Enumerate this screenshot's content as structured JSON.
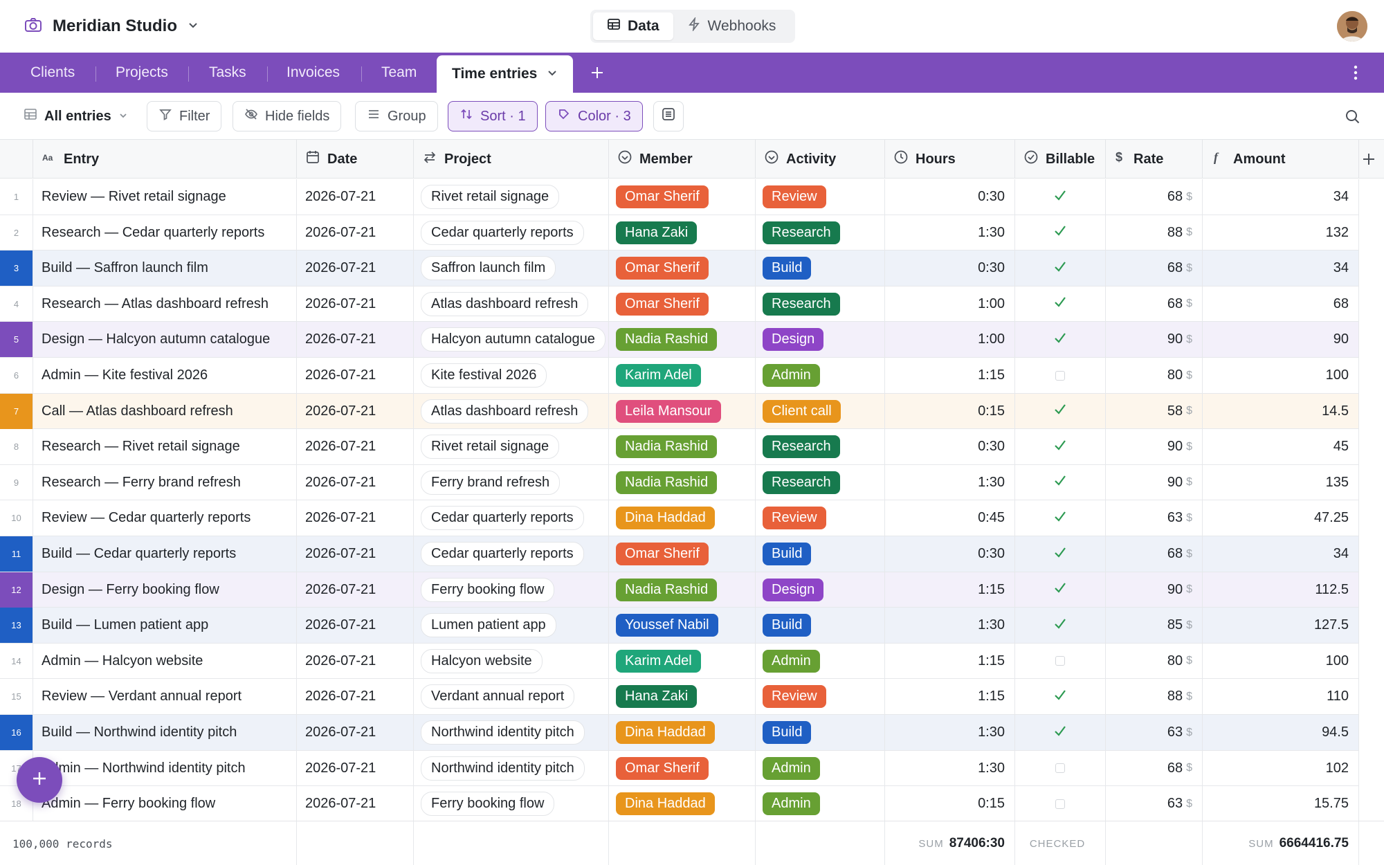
{
  "app": {
    "workspace_name": "Meridian Studio",
    "modes": [
      {
        "label": "Data",
        "icon": "table-icon",
        "active": true
      },
      {
        "label": "Webhooks",
        "icon": "lightning-icon",
        "active": false
      }
    ]
  },
  "tabs": {
    "items": [
      "Clients",
      "Projects",
      "Tasks",
      "Invoices",
      "Team"
    ],
    "active": "Time entries"
  },
  "toolbar": {
    "view": "All entries",
    "filter": "Filter",
    "hide_fields": "Hide fields",
    "group": "Group",
    "sort": "Sort · 1",
    "color": "Color · 3"
  },
  "columns": {
    "entry": "Entry",
    "date": "Date",
    "project": "Project",
    "member": "Member",
    "activity": "Activity",
    "hours": "Hours",
    "billable": "Billable",
    "rate": "Rate",
    "amount": "Amount"
  },
  "colors": {
    "accent": "#7c4dbb",
    "members": {
      "Omar Sherif": "#e8613a",
      "Hana Zaki": "#177a4e",
      "Nadia Rashid": "#67a033",
      "Karim Adel": "#1fa67a",
      "Leila Mansour": "#e04f7d",
      "Dina Haddad": "#e8951c",
      "Youssef Nabil": "#1f5fc4"
    },
    "activities": {
      "Review": "#e8613a",
      "Research": "#177a4e",
      "Build": "#1f5fc4",
      "Design": "#8e45c7",
      "Admin": "#67a033",
      "Client call": "#e8951c"
    },
    "row_tints": {
      "Build": {
        "bg": "#eef2f9",
        "num": "#1f5fc4"
      },
      "Design": {
        "bg": "#f3f0fa",
        "num": "#7c4dbb"
      },
      "Client call": {
        "bg": "#fdf6ec",
        "num": "#e8951c"
      }
    }
  },
  "rows": [
    {
      "n": "1",
      "entry": "Review — Rivet retail signage",
      "date": "2026-07-21",
      "project": "Rivet retail signage",
      "member": "Omar Sherif",
      "activity": "Review",
      "hours": "0:30",
      "billable": true,
      "rate": "68",
      "amount": "34"
    },
    {
      "n": "2",
      "entry": "Research — Cedar quarterly reports",
      "date": "2026-07-21",
      "project": "Cedar quarterly reports",
      "member": "Hana Zaki",
      "activity": "Research",
      "hours": "1:30",
      "billable": true,
      "rate": "88",
      "amount": "132"
    },
    {
      "n": "3",
      "entry": "Build — Saffron launch film",
      "date": "2026-07-21",
      "project": "Saffron launch film",
      "member": "Omar Sherif",
      "activity": "Build",
      "hours": "0:30",
      "billable": true,
      "rate": "68",
      "amount": "34"
    },
    {
      "n": "4",
      "entry": "Research — Atlas dashboard refresh",
      "date": "2026-07-21",
      "project": "Atlas dashboard refresh",
      "member": "Omar Sherif",
      "activity": "Research",
      "hours": "1:00",
      "billable": true,
      "rate": "68",
      "amount": "68"
    },
    {
      "n": "5",
      "entry": "Design — Halcyon autumn catalogue",
      "date": "2026-07-21",
      "project": "Halcyon autumn catalogue",
      "member": "Nadia Rashid",
      "activity": "Design",
      "hours": "1:00",
      "billable": true,
      "rate": "90",
      "amount": "90"
    },
    {
      "n": "6",
      "entry": "Admin — Kite festival 2026",
      "date": "2026-07-21",
      "project": "Kite festival 2026",
      "member": "Karim Adel",
      "activity": "Admin",
      "hours": "1:15",
      "billable": false,
      "rate": "80",
      "amount": "100"
    },
    {
      "n": "7",
      "entry": "Call — Atlas dashboard refresh",
      "date": "2026-07-21",
      "project": "Atlas dashboard refresh",
      "member": "Leila Mansour",
      "activity": "Client call",
      "hours": "0:15",
      "billable": true,
      "rate": "58",
      "amount": "14.5"
    },
    {
      "n": "8",
      "entry": "Research — Rivet retail signage",
      "date": "2026-07-21",
      "project": "Rivet retail signage",
      "member": "Nadia Rashid",
      "activity": "Research",
      "hours": "0:30",
      "billable": true,
      "rate": "90",
      "amount": "45"
    },
    {
      "n": "9",
      "entry": "Research — Ferry brand refresh",
      "date": "2026-07-21",
      "project": "Ferry brand refresh",
      "member": "Nadia Rashid",
      "activity": "Research",
      "hours": "1:30",
      "billable": true,
      "rate": "90",
      "amount": "135"
    },
    {
      "n": "10",
      "entry": "Review — Cedar quarterly reports",
      "date": "2026-07-21",
      "project": "Cedar quarterly reports",
      "member": "Dina Haddad",
      "activity": "Review",
      "hours": "0:45",
      "billable": true,
      "rate": "63",
      "amount": "47.25"
    },
    {
      "n": "11",
      "entry": "Build — Cedar quarterly reports",
      "date": "2026-07-21",
      "project": "Cedar quarterly reports",
      "member": "Omar Sherif",
      "activity": "Build",
      "hours": "0:30",
      "billable": true,
      "rate": "68",
      "amount": "34"
    },
    {
      "n": "12",
      "entry": "Design — Ferry booking flow",
      "date": "2026-07-21",
      "project": "Ferry booking flow",
      "member": "Nadia Rashid",
      "activity": "Design",
      "hours": "1:15",
      "billable": true,
      "rate": "90",
      "amount": "112.5"
    },
    {
      "n": "13",
      "entry": "Build — Lumen patient app",
      "date": "2026-07-21",
      "project": "Lumen patient app",
      "member": "Youssef Nabil",
      "activity": "Build",
      "hours": "1:30",
      "billable": true,
      "rate": "85",
      "amount": "127.5"
    },
    {
      "n": "14",
      "entry": "Admin — Halcyon website",
      "date": "2026-07-21",
      "project": "Halcyon website",
      "member": "Karim Adel",
      "activity": "Admin",
      "hours": "1:15",
      "billable": false,
      "rate": "80",
      "amount": "100"
    },
    {
      "n": "15",
      "entry": "Review — Verdant annual report",
      "date": "2026-07-21",
      "project": "Verdant annual report",
      "member": "Hana Zaki",
      "activity": "Review",
      "hours": "1:15",
      "billable": true,
      "rate": "88",
      "amount": "110"
    },
    {
      "n": "16",
      "entry": "Build — Northwind identity pitch",
      "date": "2026-07-21",
      "project": "Northwind identity pitch",
      "member": "Dina Haddad",
      "activity": "Build",
      "hours": "1:30",
      "billable": true,
      "rate": "63",
      "amount": "94.5"
    },
    {
      "n": "17",
      "entry": "Admin — Northwind identity pitch",
      "date": "2026-07-21",
      "project": "Northwind identity pitch",
      "member": "Omar Sherif",
      "activity": "Admin",
      "hours": "1:30",
      "billable": false,
      "rate": "68",
      "amount": "102"
    },
    {
      "n": "18",
      "entry": "Admin — Ferry booking flow",
      "date": "2026-07-21",
      "project": "Ferry booking flow",
      "member": "Dina Haddad",
      "activity": "Admin",
      "hours": "0:15",
      "billable": false,
      "rate": "63",
      "amount": "15.75"
    }
  ],
  "rate_unit": "$",
  "footer": {
    "records": "100,000 records",
    "hours_label": "SUM",
    "hours_sum": "87406:30",
    "billable_label": "CHECKED",
    "amount_label": "SUM",
    "amount_sum": "6664416.75"
  }
}
